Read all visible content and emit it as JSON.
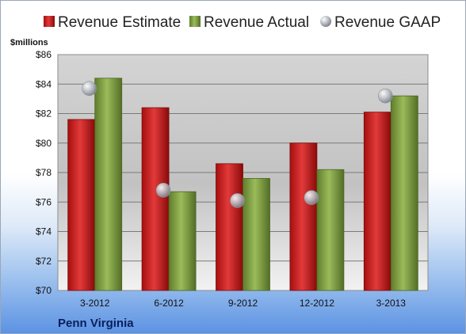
{
  "chart_data": {
    "type": "bar",
    "unit_label": "$millions",
    "company": "Penn Virginia",
    "categories": [
      "3-2012",
      "6-2012",
      "9-2012",
      "12-2012",
      "3-2013"
    ],
    "series": [
      {
        "name": "Revenue Estimate",
        "kind": "bar",
        "color": "#cc1f1f",
        "values": [
          81.6,
          82.4,
          78.6,
          80.0,
          82.1
        ]
      },
      {
        "name": "Revenue Actual",
        "kind": "bar",
        "color": "#7e9e3f",
        "values": [
          84.4,
          76.7,
          77.6,
          78.2,
          83.2
        ]
      },
      {
        "name": "Revenue GAAP",
        "kind": "marker",
        "color": "#b8bcc4",
        "values": [
          83.7,
          76.8,
          76.1,
          76.3,
          83.2
        ]
      }
    ],
    "yticks": [
      "$70",
      "$72",
      "$74",
      "$76",
      "$78",
      "$80",
      "$82",
      "$84",
      "$86"
    ],
    "ylim": [
      70,
      86
    ],
    "grid": true,
    "legend_position": "top"
  }
}
